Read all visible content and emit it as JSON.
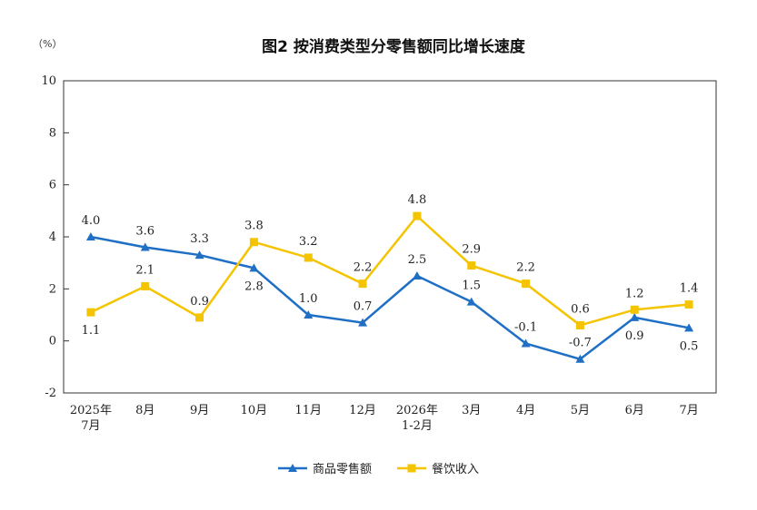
{
  "chart_data": {
    "type": "line",
    "title": "图2  按消费类型分零售额同比增长速度",
    "unit": "（%）",
    "categories": [
      [
        "2025年",
        "7月"
      ],
      [
        "8月"
      ],
      [
        "9月"
      ],
      [
        "10月"
      ],
      [
        "11月"
      ],
      [
        "12月"
      ],
      [
        "2026年",
        "1-2月"
      ],
      [
        "3月"
      ],
      [
        "4月"
      ],
      [
        "5月"
      ],
      [
        "6月"
      ],
      [
        "7月"
      ]
    ],
    "ylim": [
      -2,
      10
    ],
    "yticks": [
      -2,
      0,
      2,
      4,
      6,
      8,
      10
    ],
    "grid": false,
    "legend_position": "bottom-center",
    "series": [
      {
        "name": "商品零售额",
        "color": "#1f6fc5",
        "marker": "triangle",
        "values": [
          4.0,
          3.6,
          3.3,
          2.8,
          1.0,
          0.7,
          2.5,
          1.5,
          -0.1,
          -0.7,
          0.9,
          0.5
        ],
        "labels": [
          "4.0",
          "3.6",
          "3.3",
          "2.8",
          "1.0",
          "0.7",
          "2.5",
          "1.5",
          "-0.1",
          "-0.7",
          "0.9",
          "0.5"
        ]
      },
      {
        "name": "餐饮收入",
        "color": "#f5c400",
        "marker": "square",
        "values": [
          1.1,
          2.1,
          0.9,
          3.8,
          3.2,
          2.2,
          4.8,
          2.9,
          2.2,
          0.6,
          1.2,
          1.4
        ],
        "labels": [
          "1.1",
          "2.1",
          "0.9",
          "3.8",
          "3.2",
          "2.2",
          "4.8",
          "2.9",
          "2.2",
          "0.6",
          "1.2",
          "1.4"
        ]
      }
    ]
  }
}
